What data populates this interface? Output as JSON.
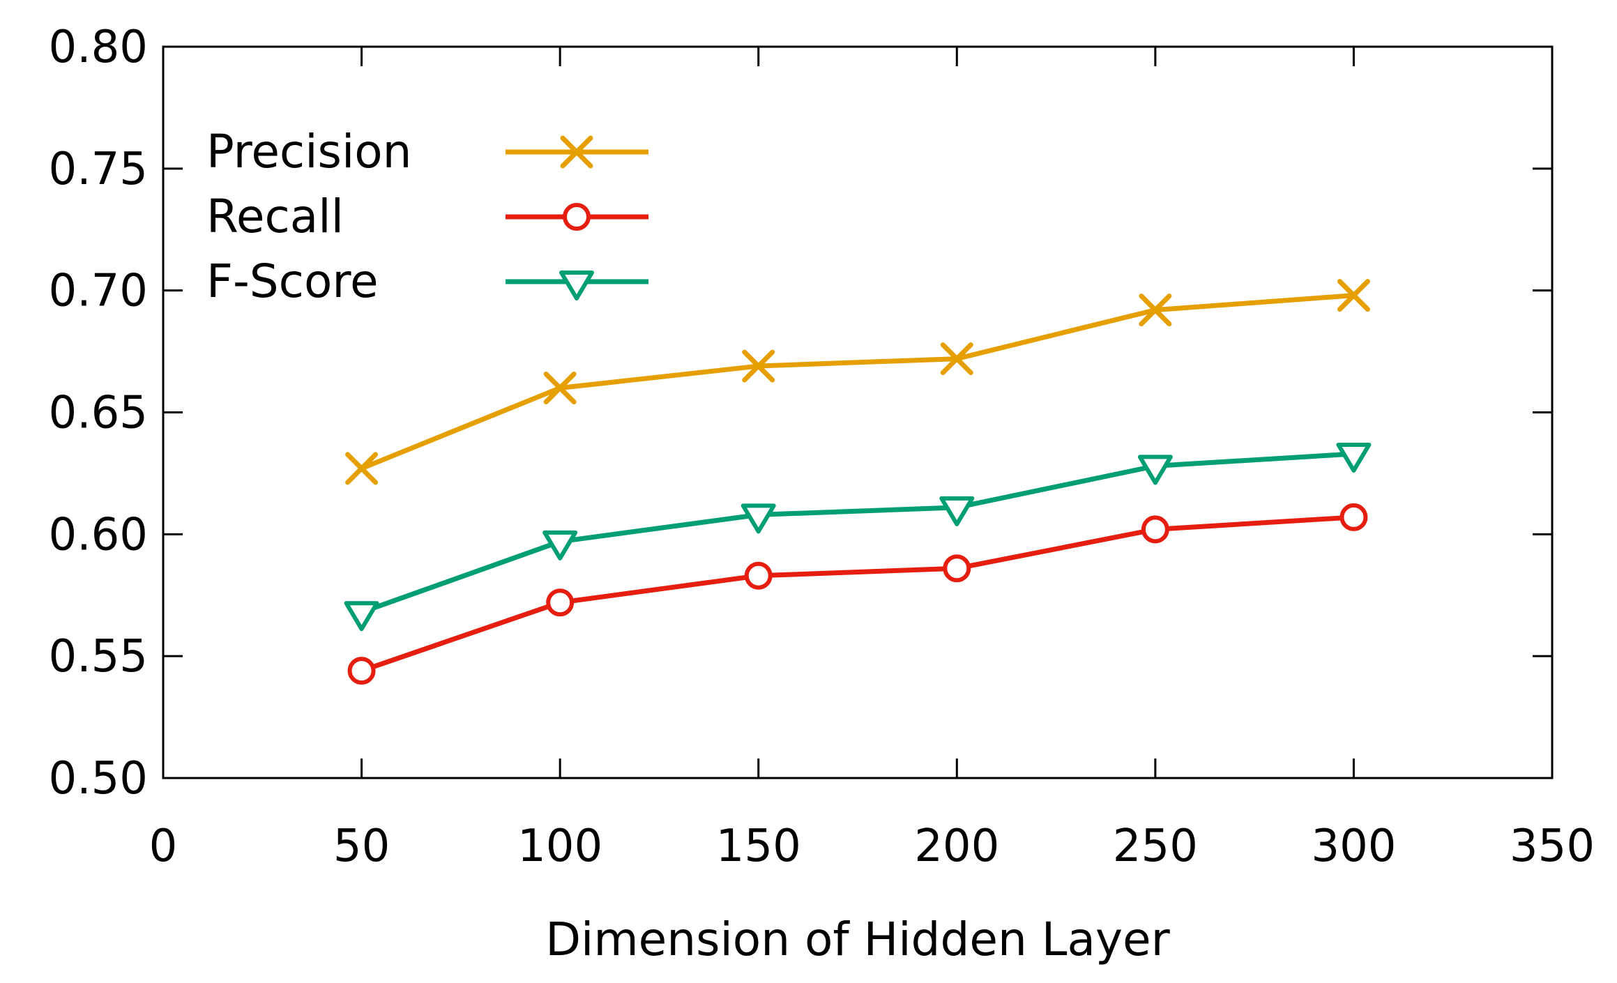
{
  "chart_data": {
    "type": "line",
    "title": "",
    "xlabel": "Dimension of Hidden Layer",
    "ylabel": "",
    "xlim": [
      0,
      350
    ],
    "ylim": [
      0.5,
      0.8
    ],
    "xticks": [
      0,
      50,
      100,
      150,
      200,
      250,
      300,
      350
    ],
    "xtick_labels": [
      "0",
      "50",
      "100",
      "150",
      "200",
      "250",
      "300",
      "350"
    ],
    "yticks": [
      0.5,
      0.55,
      0.6,
      0.65,
      0.7,
      0.75,
      0.8
    ],
    "ytick_labels": [
      "0.50",
      "0.55",
      "0.60",
      "0.65",
      "0.70",
      "0.75",
      "0.80"
    ],
    "grid": false,
    "legend_position": "top-left",
    "x": [
      50,
      100,
      150,
      200,
      250,
      300
    ],
    "series": [
      {
        "name": "Precision",
        "marker": "x",
        "color": "#e69f00",
        "values": [
          0.627,
          0.66,
          0.669,
          0.672,
          0.692,
          0.698
        ]
      },
      {
        "name": "Recall",
        "marker": "circle",
        "color": "#e51e10",
        "values": [
          0.544,
          0.572,
          0.583,
          0.586,
          0.602,
          0.607
        ]
      },
      {
        "name": "F-Score",
        "marker": "triangle-down",
        "color": "#009e73",
        "values": [
          0.568,
          0.597,
          0.608,
          0.611,
          0.628,
          0.633
        ]
      }
    ]
  }
}
